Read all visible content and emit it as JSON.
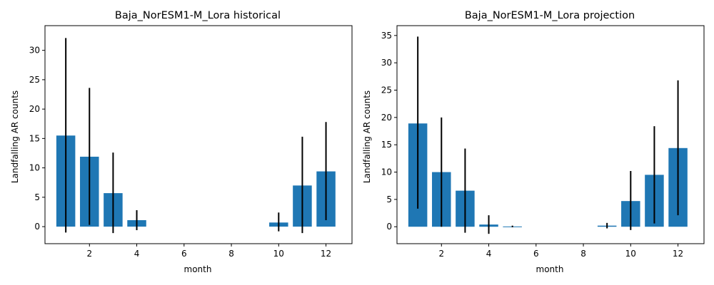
{
  "chart_data": [
    {
      "type": "bar",
      "title": "Baja_NorESM1-M_Lora historical",
      "xlabel": "month",
      "ylabel": "Landfalling AR counts",
      "xlim": [
        0.12,
        13.1
      ],
      "ylim": [
        -2.9,
        34.2
      ],
      "xticks": [
        2,
        4,
        6,
        8,
        10,
        12
      ],
      "yticks": [
        0,
        5,
        10,
        15,
        20,
        25,
        30
      ],
      "bar_color": "#1f77b4",
      "error_color": "#000000",
      "x": [
        1,
        2,
        3,
        4,
        5,
        6,
        7,
        8,
        9,
        10,
        11,
        12
      ],
      "values": [
        15.5,
        11.9,
        5.7,
        1.1,
        0,
        0,
        0,
        0,
        0,
        0.7,
        7.0,
        9.4
      ],
      "error_low": [
        -1.0,
        0.3,
        -1.1,
        -0.6,
        0,
        0,
        0,
        0,
        0,
        -0.8,
        -1.1,
        1.1
      ],
      "error_high": [
        32.1,
        23.6,
        12.6,
        2.8,
        0,
        0,
        0,
        0,
        0,
        2.4,
        15.3,
        17.8
      ]
    },
    {
      "type": "bar",
      "title": "Baja_NorESM1-M_Lora projection",
      "xlabel": "month",
      "ylabel": "Landfalling AR counts",
      "xlim": [
        0.12,
        13.1
      ],
      "ylim": [
        -3.1,
        36.8
      ],
      "xticks": [
        2,
        4,
        6,
        8,
        10,
        12
      ],
      "yticks": [
        0,
        5,
        10,
        15,
        20,
        25,
        30,
        35
      ],
      "bar_color": "#1f77b4",
      "error_color": "#000000",
      "x": [
        1,
        2,
        3,
        4,
        5,
        6,
        7,
        8,
        9,
        10,
        11,
        12
      ],
      "values": [
        18.9,
        10.0,
        6.6,
        0.4,
        0.05,
        0,
        0,
        0,
        0.2,
        4.7,
        9.5,
        14.4
      ],
      "error_low": [
        3.3,
        0.0,
        -1.1,
        -1.3,
        -0.1,
        0,
        0,
        0,
        -0.3,
        -0.6,
        0.6,
        2.1
      ],
      "error_high": [
        34.8,
        20.0,
        14.3,
        2.1,
        0.2,
        0,
        0,
        0,
        0.7,
        10.2,
        18.4,
        26.8
      ]
    }
  ]
}
